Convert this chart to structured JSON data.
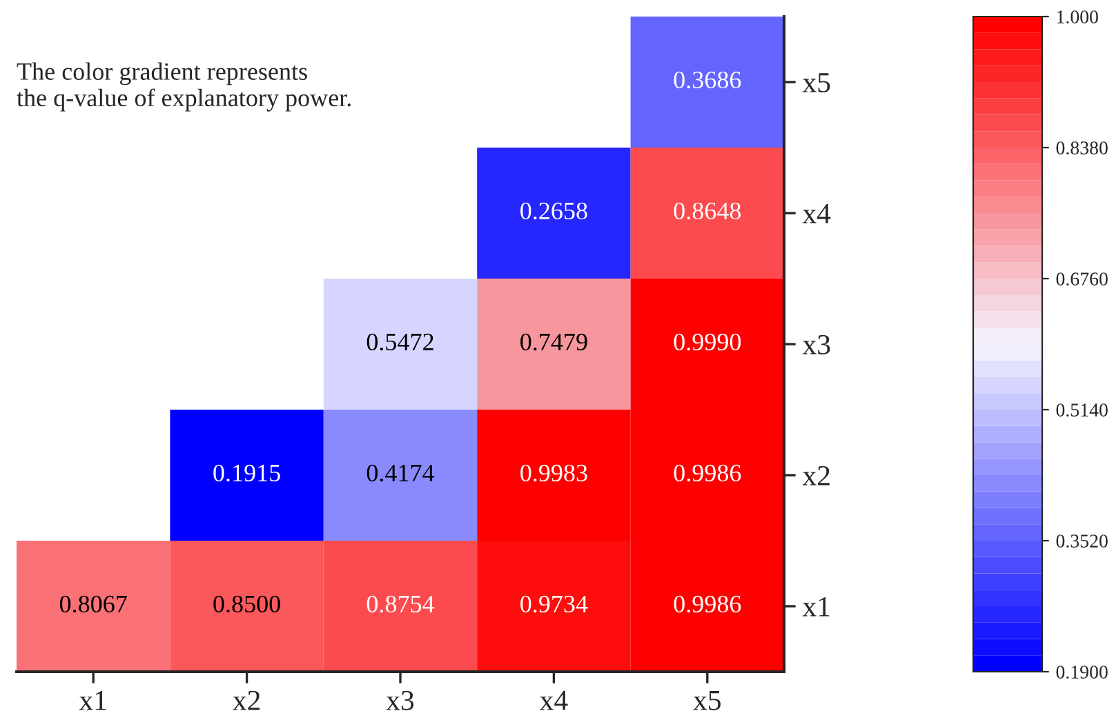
{
  "chart_data": {
    "type": "heatmap",
    "categories": [
      "x1",
      "x2",
      "x3",
      "x4",
      "x5"
    ],
    "y_categories": [
      "x5",
      "x4",
      "x3",
      "x2",
      "x1"
    ],
    "cells": [
      [
        null,
        null,
        null,
        null,
        0.3686
      ],
      [
        null,
        null,
        null,
        0.2658,
        0.8648
      ],
      [
        null,
        null,
        0.5472,
        0.7479,
        0.999
      ],
      [
        null,
        0.1915,
        0.4174,
        0.9983,
        0.9986
      ],
      [
        0.8067,
        0.85,
        0.8754,
        0.9734,
        0.9986
      ]
    ],
    "cell_labels": [
      [
        null,
        null,
        null,
        null,
        "0.3686"
      ],
      [
        null,
        null,
        null,
        "0.2658",
        "0.8648"
      ],
      [
        null,
        null,
        "0.5472",
        "0.7479",
        "0.9990"
      ],
      [
        null,
        "0.1915",
        "0.4174",
        "0.9983",
        "0.9986"
      ],
      [
        "0.8067",
        "0.8500",
        "0.8754",
        "0.9734",
        "0.9986"
      ]
    ],
    "clim": [
      0.19,
      1.0
    ],
    "cticks": [
      {
        "value": 0.19,
        "label": "0.1900"
      },
      {
        "value": 0.352,
        "label": "0.3520"
      },
      {
        "value": 0.514,
        "label": "0.5140"
      },
      {
        "value": 0.676,
        "label": "0.6760"
      },
      {
        "value": 0.838,
        "label": "0.8380"
      },
      {
        "value": 1.0,
        "label": "1.000"
      }
    ],
    "annotations": [
      "The color gradient represents\nthe q-value of explanatory power."
    ],
    "grid": false
  }
}
